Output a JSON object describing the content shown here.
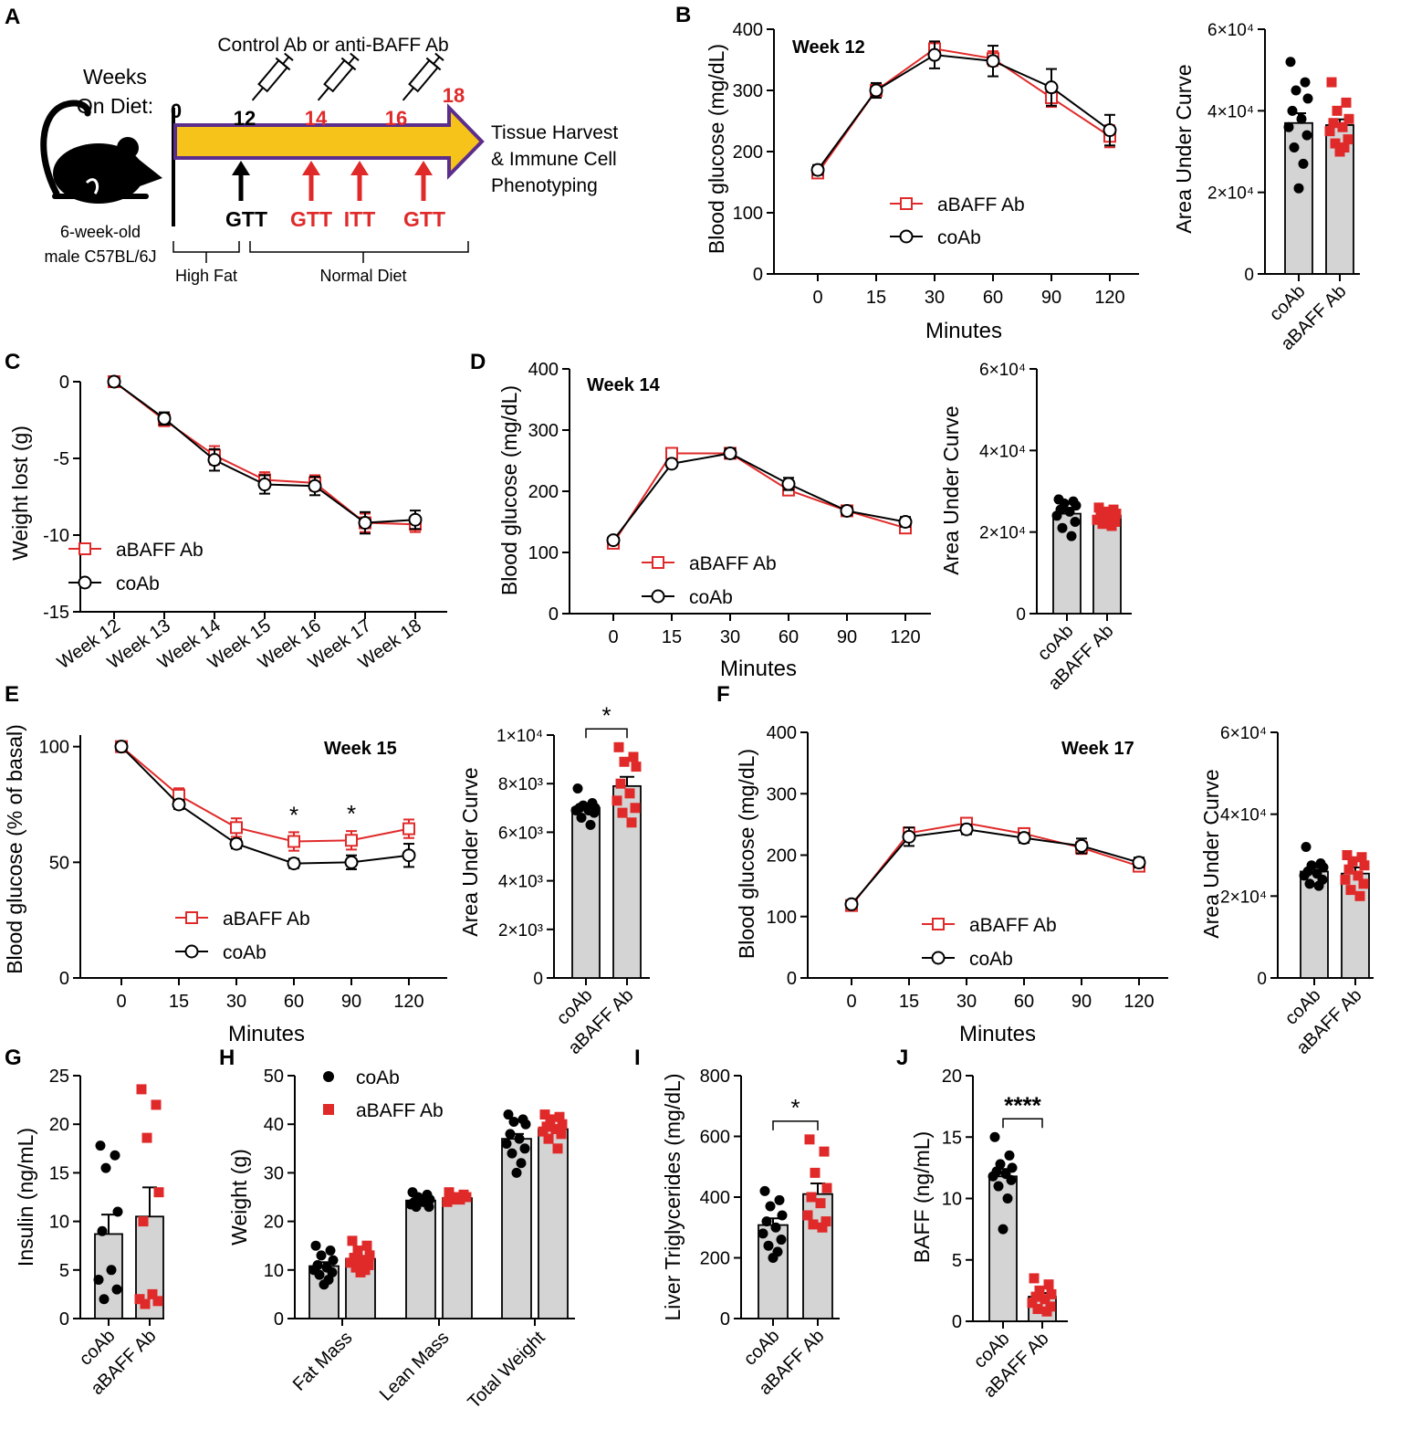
{
  "colors": {
    "red": "#e02a2a",
    "black": "#000000",
    "bar": "#d4d4d4",
    "arrow": "#f5c31a",
    "arrow_edge": "#5b2d8c"
  },
  "schematic": {
    "panel": "A",
    "weeks_label": [
      "Weeks",
      "On Diet:"
    ],
    "ab_label": "Control Ab or anti-BAFF Ab",
    "week_nums": [
      "0",
      "12",
      "14",
      "16",
      "18"
    ],
    "tests": [
      "GTT",
      "GTT",
      "ITT",
      "GTT"
    ],
    "harvest": [
      "Tissue Harvest",
      "& Immune Cell",
      "Phenotyping"
    ],
    "mouse_label": [
      "6-week-old",
      "male C57BL/6J"
    ],
    "diet": [
      "High Fat",
      "Normal Diet"
    ]
  },
  "chart_data": [
    {
      "id": "B",
      "panel": "B",
      "type": "line",
      "title": "Week 12",
      "xlabel": "Minutes",
      "ylabel": "Blood glucose (mg/dL)",
      "categories": [
        "0",
        "15",
        "30",
        "60",
        "90",
        "120"
      ],
      "ylim": [
        0,
        400
      ],
      "yticks": [
        "0",
        "100",
        "200",
        "300",
        "400"
      ],
      "legend": [
        "aBAFF Ab",
        "coAb"
      ],
      "series": [
        {
          "name": "aBAFF Ab",
          "values": [
            165,
            300,
            368,
            352,
            288,
            225
          ],
          "err": [
            8,
            12,
            12,
            12,
            15,
            18
          ]
        },
        {
          "name": "coAb",
          "values": [
            170,
            300,
            358,
            348,
            305,
            235
          ],
          "err": [
            8,
            12,
            22,
            25,
            30,
            25
          ]
        }
      ]
    },
    {
      "id": "Bauc",
      "type": "bar",
      "ylabel": "Area Under Curve",
      "categories": [
        "coAb",
        "aBAFF Ab"
      ],
      "ylim": [
        0,
        60000
      ],
      "yticks": [
        "0",
        "2×10⁴",
        "4×10⁴",
        "6×10⁴"
      ],
      "values": [
        37000,
        36500
      ],
      "err": [
        2400,
        1400
      ],
      "points": [
        [
          52000,
          47000,
          45000,
          43000,
          40000,
          38000,
          36000,
          34000,
          31000,
          27000,
          21000
        ],
        [
          47000,
          42000,
          40000,
          38000,
          37000,
          36000,
          35000,
          33000,
          32000,
          31000,
          30000
        ]
      ]
    },
    {
      "id": "C",
      "panel": "C",
      "type": "line",
      "xlabel": "",
      "ylabel": "Weight lost (g)",
      "categories": [
        "Week 12",
        "Week 13",
        "Week 14",
        "Week 15",
        "Week 16",
        "Week 17",
        "Week 18"
      ],
      "ylim": [
        -15,
        0
      ],
      "yticks": [
        "-15",
        "-10",
        "-5",
        "0"
      ],
      "legend": [
        "aBAFF Ab",
        "coAb"
      ],
      "series": [
        {
          "name": "aBAFF Ab",
          "values": [
            0,
            -2.5,
            -4.8,
            -6.4,
            -6.6,
            -9.2,
            -9.3
          ],
          "err": [
            0.2,
            0.4,
            0.6,
            0.5,
            0.5,
            0.6,
            0.5
          ]
        },
        {
          "name": "coAb",
          "values": [
            0,
            -2.4,
            -5.1,
            -6.7,
            -6.8,
            -9.2,
            -9.0
          ],
          "err": [
            0.2,
            0.4,
            0.7,
            0.6,
            0.6,
            0.7,
            0.6
          ]
        }
      ]
    },
    {
      "id": "D",
      "panel": "D",
      "type": "line",
      "title": "Week 14",
      "xlabel": "Minutes",
      "ylabel": "Blood glucose (mg/dL)",
      "categories": [
        "0",
        "15",
        "30",
        "60",
        "90",
        "120"
      ],
      "ylim": [
        0,
        400
      ],
      "yticks": [
        "0",
        "100",
        "200",
        "300",
        "400"
      ],
      "legend": [
        "aBAFF Ab",
        "coAb"
      ],
      "series": [
        {
          "name": "aBAFF Ab",
          "values": [
            115,
            262,
            262,
            202,
            168,
            140
          ],
          "err": [
            5,
            6,
            6,
            6,
            6,
            6
          ]
        },
        {
          "name": "coAb",
          "values": [
            120,
            245,
            262,
            212,
            168,
            150
          ],
          "err": [
            5,
            6,
            8,
            10,
            7,
            8
          ]
        }
      ]
    },
    {
      "id": "Dauc",
      "type": "bar",
      "ylabel": "Area Under Curve",
      "categories": [
        "coAb",
        "aBAFF Ab"
      ],
      "ylim": [
        0,
        60000
      ],
      "yticks": [
        "0",
        "2×10⁴",
        "4×10⁴",
        "6×10⁴"
      ],
      "values": [
        24500,
        24000
      ],
      "err": [
        1200,
        600
      ],
      "points": [
        [
          28000,
          27500,
          27000,
          26500,
          25500,
          25000,
          24000,
          22500,
          21000,
          19000
        ],
        [
          26000,
          25500,
          25000,
          24500,
          24000,
          23500,
          23000,
          22500,
          22000,
          21500
        ]
      ]
    },
    {
      "id": "E",
      "panel": "E",
      "type": "line",
      "title": "Week 15",
      "xlabel": "Minutes",
      "ylabel": "Blood glucose (% of basal)",
      "categories": [
        "0",
        "15",
        "30",
        "60",
        "90",
        "120"
      ],
      "ylim": [
        0,
        105
      ],
      "yticks": [
        "0",
        "50",
        "100"
      ],
      "legend": [
        "aBAFF Ab",
        "coAb"
      ],
      "stars": [
        "",
        "",
        "",
        "*",
        "*",
        ""
      ],
      "series": [
        {
          "name": "aBAFF Ab",
          "values": [
            100,
            79,
            65,
            59,
            59.5,
            64.5
          ],
          "err": [
            0,
            3,
            4,
            4,
            4,
            4
          ]
        },
        {
          "name": "coAb",
          "values": [
            100,
            75,
            58,
            49.5,
            50,
            53
          ],
          "err": [
            0,
            2,
            2,
            2,
            3,
            5
          ]
        }
      ]
    },
    {
      "id": "Eauc",
      "type": "bar",
      "ylabel": "Area Under Curve",
      "categories": [
        "coAb",
        "aBAFF Ab"
      ],
      "ylim": [
        0,
        10000
      ],
      "yticks": [
        "0",
        "2×10³",
        "4×10³",
        "6×10³",
        "8×10³",
        "1×10⁴"
      ],
      "values": [
        7000,
        7900
      ],
      "err": [
        180,
        380
      ],
      "star": "*",
      "points": [
        [
          7800,
          7200,
          7100,
          7000,
          7000,
          6900,
          6900,
          6800,
          6600,
          6300
        ],
        [
          9500,
          9100,
          8900,
          8700,
          8000,
          7600,
          7300,
          7000,
          6800,
          6400
        ]
      ]
    },
    {
      "id": "F",
      "panel": "F",
      "type": "line",
      "title": "Week 17",
      "xlabel": "Minutes",
      "ylabel": "Blood glucose (mg/dL)",
      "categories": [
        "0",
        "15",
        "30",
        "60",
        "90",
        "120"
      ],
      "ylim": [
        0,
        400
      ],
      "yticks": [
        "0",
        "100",
        "200",
        "300",
        "400"
      ],
      "legend": [
        "aBAFF Ab",
        "coAb"
      ],
      "series": [
        {
          "name": "aBAFF Ab",
          "values": [
            118,
            236,
            252,
            235,
            212,
            182
          ],
          "err": [
            4,
            8,
            7,
            9,
            10,
            8
          ]
        },
        {
          "name": "coAb",
          "values": [
            120,
            230,
            242,
            228,
            215,
            188
          ],
          "err": [
            4,
            15,
            8,
            8,
            12,
            8
          ]
        }
      ]
    },
    {
      "id": "Fauc",
      "type": "bar",
      "ylabel": "Area Under Curve",
      "categories": [
        "coAb",
        "aBAFF Ab"
      ],
      "ylim": [
        0,
        60000
      ],
      "yticks": [
        "0",
        "2×10⁴",
        "4×10⁴",
        "6×10⁴"
      ],
      "values": [
        26000,
        25500
      ],
      "err": [
        1000,
        1500
      ],
      "points": [
        [
          32000,
          28000,
          27500,
          27000,
          26000,
          25500,
          25000,
          24000,
          23000,
          22500
        ],
        [
          30000,
          29500,
          28500,
          27500,
          26500,
          25000,
          24000,
          23000,
          21500,
          20000
        ]
      ]
    },
    {
      "id": "G",
      "panel": "G",
      "type": "bar",
      "ylabel": "Insulin (ng/mL)",
      "categories": [
        "coAb",
        "aBAFF Ab"
      ],
      "ylim": [
        0,
        25
      ],
      "yticks": [
        "0",
        "5",
        "10",
        "15",
        "20",
        "25"
      ],
      "values": [
        8.7,
        10.5
      ],
      "err": [
        2,
        3
      ],
      "points": [
        [
          17.8,
          16.8,
          15.5,
          11,
          9,
          5,
          4,
          3,
          2
        ],
        [
          23.6,
          22,
          18.6,
          13,
          10,
          2.5,
          2,
          1.8,
          1.5
        ]
      ]
    },
    {
      "id": "H",
      "panel": "H",
      "type": "bar",
      "ylabel": "Weight (g)",
      "categories": [
        "Fat Mass",
        "Lean Mass",
        "Total Weight"
      ],
      "ylim": [
        0,
        50
      ],
      "yticks": [
        "0",
        "10",
        "20",
        "30",
        "40",
        "50"
      ],
      "legend": [
        "coAb",
        "aBAFF Ab"
      ],
      "series": [
        {
          "name": "coAb",
          "values": [
            10.8,
            24.3,
            37
          ],
          "err": [
            0.8,
            0.4,
            1
          ],
          "points": [
            [
              15,
              14,
              13,
              12,
              11,
              10.5,
              10,
              9.5,
              9,
              8,
              7
            ],
            [
              26,
              25.5,
              25,
              24.5,
              24,
              24,
              23.5,
              23,
              23
            ],
            [
              42,
              41,
              40.5,
              40,
              38,
              37,
              36,
              35,
              34,
              32,
              30
            ]
          ]
        },
        {
          "name": "aBAFF Ab",
          "values": [
            12.3,
            24.8,
            39
          ],
          "err": [
            0.6,
            0.3,
            0.7
          ],
          "points": [
            [
              16,
              15,
              14,
              13,
              12.5,
              12,
              11.5,
              11,
              10.5,
              10,
              9.5
            ],
            [
              26,
              25.5,
              25,
              25,
              24.5,
              24.5,
              24
            ],
            [
              42,
              41.5,
              41,
              40,
              39.5,
              39,
              38.5,
              38,
              37,
              35
            ]
          ]
        }
      ]
    },
    {
      "id": "I",
      "panel": "I",
      "type": "bar",
      "ylabel": "Liver Triglycerides (mg/dL)",
      "categories": [
        "coAb",
        "aBAFF Ab"
      ],
      "ylim": [
        0,
        800
      ],
      "yticks": [
        "0",
        "200",
        "400",
        "600",
        "800"
      ],
      "values": [
        308,
        410
      ],
      "err": [
        22,
        35
      ],
      "star": "*",
      "points": [
        [
          420,
          390,
          370,
          340,
          320,
          300,
          280,
          260,
          240,
          220,
          200
        ],
        [
          590,
          550,
          480,
          430,
          400,
          380,
          340,
          320,
          310,
          300
        ]
      ]
    },
    {
      "id": "J",
      "panel": "J",
      "type": "bar",
      "ylabel": "BAFF (ng/mL)",
      "categories": [
        "coAb",
        "aBAFF Ab"
      ],
      "ylim": [
        0,
        20
      ],
      "yticks": [
        "0",
        "5",
        "10",
        "15",
        "20"
      ],
      "values": [
        11.8,
        2
      ],
      "err": [
        0.6,
        0.3
      ],
      "star": "****",
      "points": [
        [
          15,
          13.5,
          12.8,
          12.5,
          12.2,
          12,
          11.8,
          11.5,
          11,
          10,
          7.5
        ],
        [
          3.5,
          3,
          2.5,
          2.2,
          2,
          1.8,
          1.5,
          1.2,
          1,
          0.8
        ]
      ]
    }
  ]
}
